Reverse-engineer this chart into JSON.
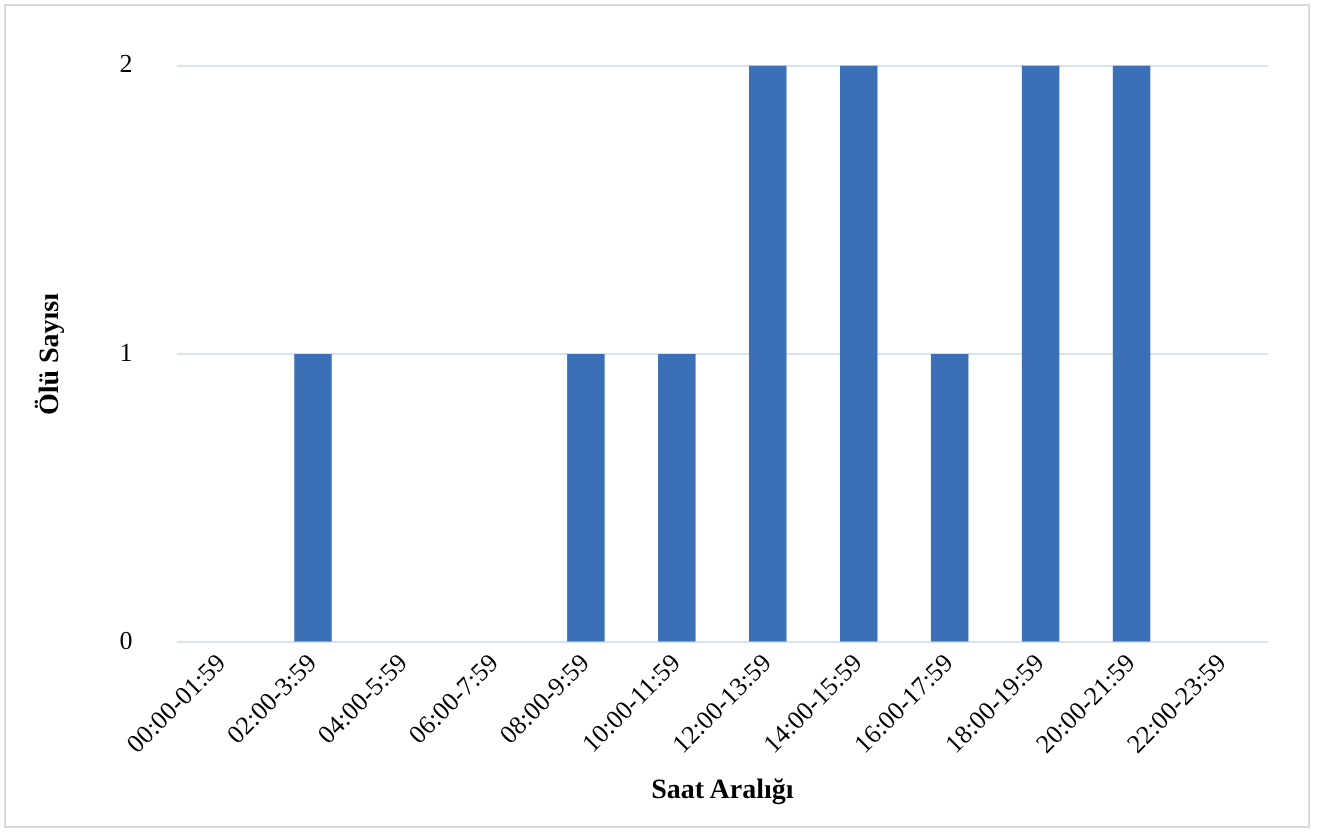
{
  "chart_data": {
    "type": "bar",
    "xlabel": "Saat Aralığı",
    "ylabel": "Ölü Sayısı",
    "categories": [
      "00:00-01:59",
      "02:00-3:59",
      "04:00-5:59",
      "06:00-7:59",
      "08:00-9:59",
      "10:00-11:59",
      "12:00-13:59",
      "14:00-15:59",
      "16:00-17:59",
      "18:00-19:59",
      "20:00-21:59",
      "22:00-23:59"
    ],
    "values": [
      0,
      1,
      0,
      0,
      1,
      1,
      2,
      2,
      1,
      2,
      2,
      0
    ],
    "color": "#3b70b6",
    "ylim": [
      0,
      2
    ],
    "yticks": [
      0,
      1,
      2
    ],
    "grid": "y"
  }
}
